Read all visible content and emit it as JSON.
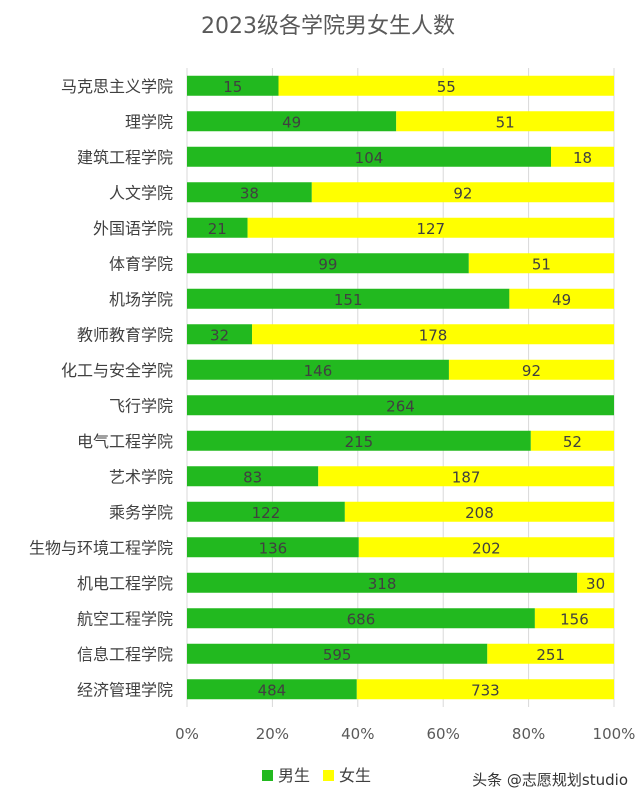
{
  "chart_data": {
    "type": "bar",
    "orientation": "horizontal",
    "stacked": "percent",
    "title": "2023级各学院男女生人数",
    "categories": [
      "马克思主义学院",
      "理学院",
      "建筑工程学院",
      "人文学院",
      "外国语学院",
      "体育学院",
      "机场学院",
      "教师教育学院",
      "化工与安全学院",
      "飞行学院",
      "电气工程学院",
      "艺术学院",
      "乘务学院",
      "生物与环境工程学院",
      "机电工程学院",
      "航空工程学院",
      "信息工程学院",
      "经济管理学院"
    ],
    "series": [
      {
        "name": "男生",
        "color": "#22b91f",
        "values": [
          15,
          49,
          104,
          38,
          21,
          99,
          151,
          32,
          146,
          264,
          215,
          83,
          122,
          136,
          318,
          686,
          595,
          484
        ]
      },
      {
        "name": "女生",
        "color": "#ffff00",
        "values": [
          55,
          51,
          18,
          92,
          127,
          51,
          49,
          178,
          92,
          0,
          52,
          187,
          208,
          202,
          30,
          156,
          251,
          733
        ]
      }
    ],
    "xticks": [
      "0%",
      "20%",
      "40%",
      "60%",
      "80%",
      "100%"
    ],
    "xlim": [
      0,
      100
    ],
    "grid": true,
    "legend_position": "bottom"
  },
  "watermark": {
    "text": "头条 @志愿规划studio"
  }
}
